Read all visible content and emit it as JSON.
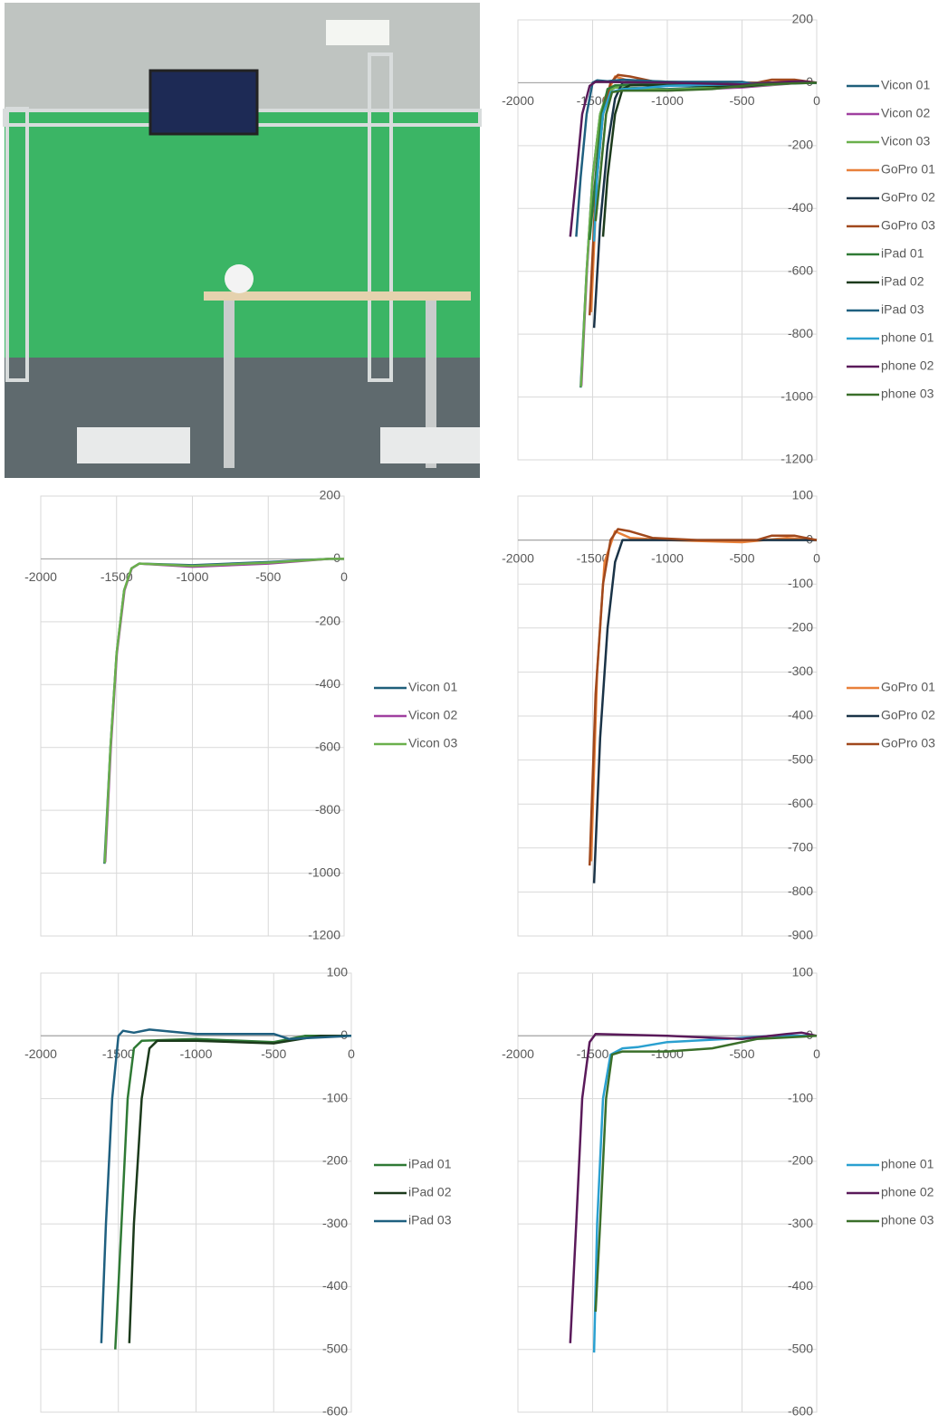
{
  "chart_data": [
    {
      "type": "line",
      "xlim": [
        -2000,
        0
      ],
      "ylim": [
        -1200,
        200
      ],
      "xticks": [
        -2000,
        -1500,
        -1000,
        -500,
        0
      ],
      "yticks": [
        -1200,
        -1000,
        -800,
        -600,
        -400,
        -200,
        0,
        200
      ],
      "grid": true,
      "series": [
        {
          "name": "Vicon 01",
          "color": "#1f5f7a",
          "x": [
            -1580,
            -1540,
            -1500,
            -1450,
            -1400,
            -1350,
            -1000,
            -500,
            -100,
            0
          ],
          "values": [
            -970,
            -600,
            -300,
            -100,
            -30,
            -15,
            -20,
            -10,
            0,
            0
          ]
        },
        {
          "name": "Vicon 02",
          "color": "#a040a0",
          "x": [
            -1575,
            -1538,
            -1498,
            -1448,
            -1400,
            -1350,
            -1000,
            -500,
            -100,
            0
          ],
          "values": [
            -965,
            -600,
            -300,
            -100,
            -30,
            -15,
            -25,
            -15,
            0,
            0
          ]
        },
        {
          "name": "Vicon 03",
          "color": "#6ab04c",
          "x": [
            -1578,
            -1540,
            -1500,
            -1450,
            -1402,
            -1350,
            -1000,
            -500,
            -100,
            0
          ],
          "values": [
            -968,
            -600,
            -300,
            -100,
            -30,
            -15,
            -22,
            -12,
            0,
            0
          ]
        },
        {
          "name": "GoPro 01",
          "color": "#e8803a",
          "x": [
            -1510,
            -1470,
            -1420,
            -1350,
            -1250,
            -1000,
            -500,
            -200,
            0
          ],
          "values": [
            -730,
            -300,
            -50,
            20,
            5,
            0,
            -5,
            5,
            0
          ]
        },
        {
          "name": "GoPro 02",
          "color": "#1a3347",
          "x": [
            -1490,
            -1450,
            -1400,
            -1350,
            -1300,
            -1000,
            -500,
            0
          ],
          "values": [
            -780,
            -450,
            -200,
            -50,
            0,
            0,
            0,
            0
          ]
        },
        {
          "name": "GoPro 03",
          "color": "#a0481c",
          "x": [
            -1520,
            -1480,
            -1430,
            -1380,
            -1330,
            -1250,
            -1100,
            -800,
            -400,
            -300,
            -150,
            0
          ],
          "values": [
            -740,
            -350,
            -100,
            0,
            25,
            20,
            5,
            0,
            0,
            10,
            10,
            0
          ]
        },
        {
          "name": "iPad 01",
          "color": "#2f7a35",
          "x": [
            -1520,
            -1480,
            -1440,
            -1400,
            -1350,
            -1000,
            -500,
            -300,
            0
          ],
          "values": [
            -500,
            -300,
            -100,
            -20,
            -8,
            -5,
            -10,
            0,
            0
          ]
        },
        {
          "name": "iPad 02",
          "color": "#1b3a1b",
          "x": [
            -1430,
            -1400,
            -1350,
            -1300,
            -1250,
            -1000,
            -500,
            -200,
            0
          ],
          "values": [
            -490,
            -300,
            -100,
            -20,
            -8,
            -8,
            -12,
            0,
            0
          ]
        },
        {
          "name": "iPad 03",
          "color": "#1f6080",
          "x": [
            -1610,
            -1580,
            -1540,
            -1500,
            -1470,
            -1400,
            -1300,
            -1000,
            -500,
            -400,
            0
          ],
          "values": [
            -490,
            -300,
            -100,
            0,
            8,
            5,
            10,
            3,
            3,
            -5,
            0
          ]
        },
        {
          "name": "phone 01",
          "color": "#2aa0d0",
          "x": [
            -1490,
            -1470,
            -1430,
            -1380,
            -1300,
            -1200,
            -1000,
            -600,
            -300,
            0
          ],
          "values": [
            -505,
            -300,
            -100,
            -30,
            -20,
            -18,
            -10,
            -5,
            0,
            0
          ]
        },
        {
          "name": "phone 02",
          "color": "#5a1a5a",
          "x": [
            -1650,
            -1610,
            -1570,
            -1520,
            -1480,
            -1000,
            -500,
            -200,
            -100,
            0
          ],
          "values": [
            -490,
            -300,
            -100,
            -10,
            3,
            0,
            -5,
            3,
            5,
            0
          ]
        },
        {
          "name": "phone 03",
          "color": "#3a6f2a",
          "x": [
            -1480,
            -1450,
            -1410,
            -1370,
            -1300,
            -1000,
            -700,
            -400,
            0
          ],
          "values": [
            -440,
            -300,
            -100,
            -30,
            -25,
            -25,
            -20,
            -5,
            0
          ]
        }
      ]
    },
    {
      "type": "line",
      "xlim": [
        -2000,
        0
      ],
      "ylim": [
        -1200,
        200
      ],
      "xticks": [
        -2000,
        -1500,
        -1000,
        -500,
        0
      ],
      "yticks": [
        -1200,
        -1000,
        -800,
        -600,
        -400,
        -200,
        0,
        200
      ],
      "grid": true,
      "series": [
        {
          "name": "Vicon 01",
          "color": "#1f5f7a",
          "x": [
            -1580,
            -1540,
            -1500,
            -1450,
            -1400,
            -1350,
            -1000,
            -500,
            -100,
            0
          ],
          "values": [
            -970,
            -600,
            -300,
            -100,
            -30,
            -15,
            -20,
            -10,
            0,
            0
          ]
        },
        {
          "name": "Vicon 02",
          "color": "#a040a0",
          "x": [
            -1575,
            -1538,
            -1498,
            -1448,
            -1400,
            -1350,
            -1000,
            -500,
            -100,
            0
          ],
          "values": [
            -965,
            -600,
            -300,
            -100,
            -30,
            -15,
            -25,
            -15,
            0,
            0
          ]
        },
        {
          "name": "Vicon 03",
          "color": "#6ab04c",
          "x": [
            -1578,
            -1540,
            -1500,
            -1450,
            -1402,
            -1350,
            -1000,
            -500,
            -100,
            0
          ],
          "values": [
            -968,
            -600,
            -300,
            -100,
            -30,
            -15,
            -22,
            -12,
            0,
            0
          ]
        }
      ]
    },
    {
      "type": "line",
      "xlim": [
        -2000,
        0
      ],
      "ylim": [
        -900,
        100
      ],
      "xticks": [
        -2000,
        -1500,
        -1000,
        -500,
        0
      ],
      "yticks": [
        -900,
        -800,
        -700,
        -600,
        -500,
        -400,
        -300,
        -200,
        -100,
        0,
        100
      ],
      "grid": true,
      "series": [
        {
          "name": "GoPro 01",
          "color": "#e8803a",
          "x": [
            -1510,
            -1470,
            -1420,
            -1350,
            -1250,
            -1000,
            -500,
            -200,
            0
          ],
          "values": [
            -730,
            -300,
            -50,
            20,
            5,
            0,
            -5,
            5,
            0
          ]
        },
        {
          "name": "GoPro 02",
          "color": "#1a3347",
          "x": [
            -1490,
            -1450,
            -1400,
            -1350,
            -1300,
            -1000,
            -500,
            0
          ],
          "values": [
            -780,
            -450,
            -200,
            -50,
            0,
            0,
            0,
            0
          ]
        },
        {
          "name": "GoPro 03",
          "color": "#a0481c",
          "x": [
            -1520,
            -1480,
            -1430,
            -1380,
            -1330,
            -1250,
            -1100,
            -800,
            -400,
            -300,
            -150,
            0
          ],
          "values": [
            -740,
            -350,
            -100,
            0,
            25,
            20,
            5,
            0,
            0,
            10,
            10,
            0
          ]
        }
      ]
    },
    {
      "type": "line",
      "xlim": [
        -2000,
        0
      ],
      "ylim": [
        -600,
        100
      ],
      "xticks": [
        -2000,
        -1500,
        -1000,
        -500,
        0
      ],
      "yticks": [
        -600,
        -500,
        -400,
        -300,
        -200,
        -100,
        0,
        100
      ],
      "grid": true,
      "series": [
        {
          "name": "iPad 01",
          "color": "#2f7a35",
          "x": [
            -1520,
            -1480,
            -1440,
            -1400,
            -1350,
            -1000,
            -500,
            -300,
            0
          ],
          "values": [
            -500,
            -300,
            -100,
            -20,
            -8,
            -5,
            -10,
            0,
            0
          ]
        },
        {
          "name": "iPad 02",
          "color": "#1b3a1b",
          "x": [
            -1430,
            -1400,
            -1350,
            -1300,
            -1250,
            -1000,
            -500,
            -200,
            0
          ],
          "values": [
            -490,
            -300,
            -100,
            -20,
            -8,
            -8,
            -12,
            0,
            0
          ]
        },
        {
          "name": "iPad 03",
          "color": "#1f6080",
          "x": [
            -1610,
            -1580,
            -1540,
            -1500,
            -1470,
            -1400,
            -1300,
            -1000,
            -500,
            -400,
            0
          ],
          "values": [
            -490,
            -300,
            -100,
            0,
            8,
            5,
            10,
            3,
            3,
            -5,
            0
          ]
        }
      ]
    },
    {
      "type": "line",
      "xlim": [
        -2000,
        0
      ],
      "ylim": [
        -600,
        100
      ],
      "xticks": [
        -2000,
        -1500,
        -1000,
        -500,
        0
      ],
      "yticks": [
        -600,
        -500,
        -400,
        -300,
        -200,
        -100,
        0,
        100
      ],
      "grid": true,
      "series": [
        {
          "name": "phone 01",
          "color": "#2aa0d0",
          "x": [
            -1490,
            -1470,
            -1430,
            -1380,
            -1300,
            -1200,
            -1000,
            -600,
            -300,
            0
          ],
          "values": [
            -505,
            -300,
            -100,
            -30,
            -20,
            -18,
            -10,
            -5,
            0,
            0
          ]
        },
        {
          "name": "phone 02",
          "color": "#5a1a5a",
          "x": [
            -1650,
            -1610,
            -1570,
            -1520,
            -1480,
            -1000,
            -500,
            -200,
            -100,
            0
          ],
          "values": [
            -490,
            -300,
            -100,
            -10,
            3,
            0,
            -5,
            3,
            5,
            0
          ]
        },
        {
          "name": "phone 03",
          "color": "#3a6f2a",
          "x": [
            -1480,
            -1450,
            -1410,
            -1370,
            -1300,
            -1000,
            -700,
            -400,
            0
          ],
          "values": [
            -440,
            -300,
            -100,
            -30,
            -25,
            -25,
            -20,
            -5,
            0
          ]
        }
      ]
    }
  ]
}
